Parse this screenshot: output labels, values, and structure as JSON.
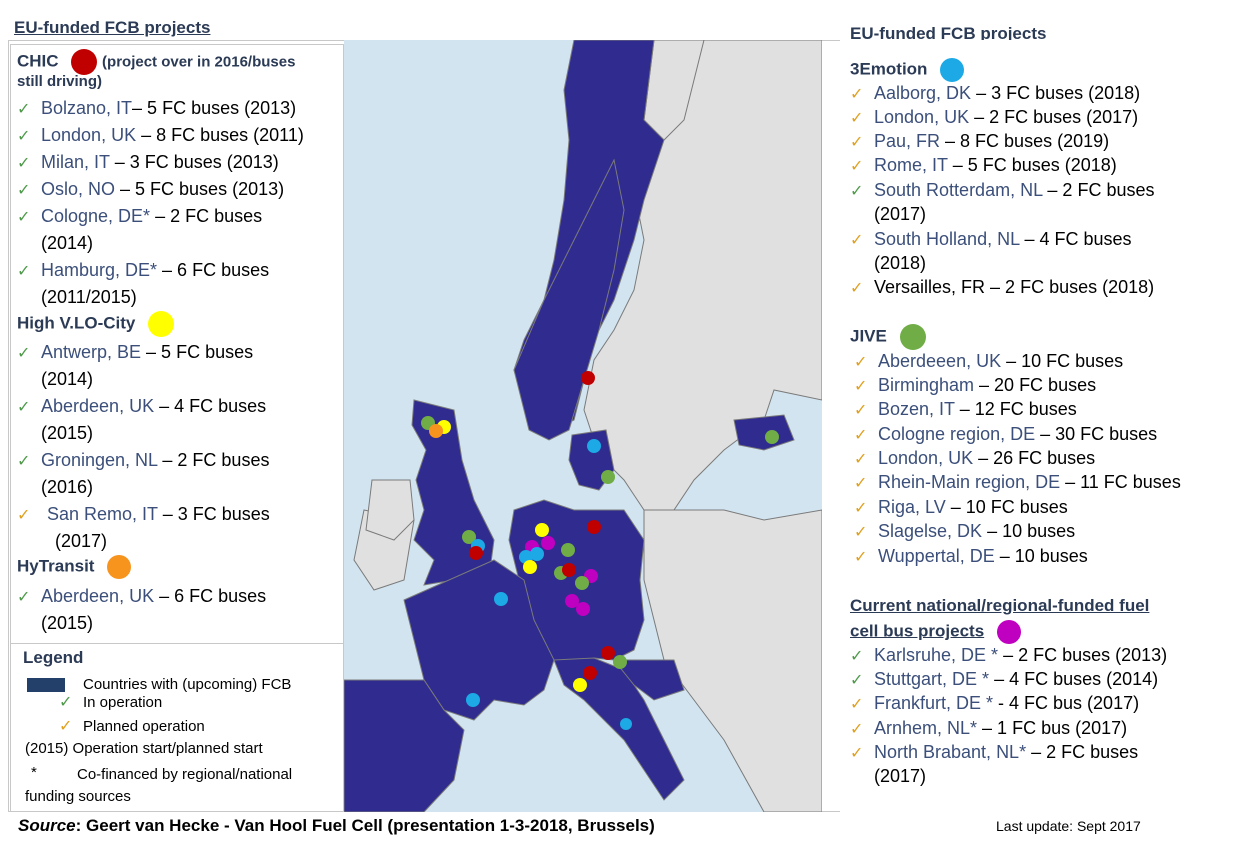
{
  "title_left": "EU-funded FCB projects",
  "title_right": "EU-funded FCB projects",
  "colors": {
    "chic": "#c00000",
    "hvlo": "#ffff00",
    "hytransit": "#f7941d",
    "emotion": "#1ca9e6",
    "jive": "#70ad47",
    "national": "#c000c0",
    "country_fill": "#2f2b8f",
    "check_green": "#4e9a4a",
    "check_orange": "#e0a020"
  },
  "chic": {
    "name": "CHIC",
    "note_line1": "(project over in 2016/buses",
    "note_line2": "still driving)",
    "items": [
      {
        "city": "Bolzano, IT",
        "rest": "– 5 FC buses (2013)"
      },
      {
        "city": "London, UK",
        "rest": " – 8 FC buses (2011)"
      },
      {
        "city": "Milan, IT",
        "rest": " – 3 FC buses (2013)"
      },
      {
        "city": "Oslo, NO",
        "rest": " – 5 FC buses (2013)"
      },
      {
        "city": "Cologne, DE*",
        "rest": " – 2 FC buses",
        "cont": "(2014)"
      },
      {
        "city": "Hamburg, DE*",
        "rest": " – 6 FC buses",
        "cont": "(2011/2015)"
      }
    ]
  },
  "hvlo": {
    "name": "High V.LO-City",
    "items": [
      {
        "city": "Antwerp, BE",
        "rest": " – 5 FC buses",
        "cont": "(2014)"
      },
      {
        "city": "Aberdeen, UK",
        "rest": " – 4 FC buses",
        "cont": "(2015)"
      },
      {
        "city": "Groningen, NL",
        "rest": " – 2 FC buses",
        "cont": "(2016)"
      },
      {
        "city": "San Remo, IT",
        "rest": " – 3 FC buses",
        "cont": "(2017)"
      }
    ]
  },
  "hytransit": {
    "name": "HyTransit",
    "items": [
      {
        "city": "Aberdeen, UK",
        "rest": " – 6 FC buses",
        "cont": "(2015)"
      }
    ]
  },
  "legend": {
    "title": "Legend",
    "countries": "Countries with (upcoming) FCB",
    "in_operation": "In operation",
    "planned": "Planned operation",
    "start": "(2015) Operation start/planned start",
    "star": "*",
    "cofinanced_1": "Co-financed by  regional/national",
    "cofinanced_2": "funding sources"
  },
  "emotion": {
    "name": "3Emotion",
    "items": [
      {
        "city": "Aalborg, DK",
        "rest": " – 3 FC buses (2018)",
        "mark": "o"
      },
      {
        "city": "London, UK",
        "rest": " – 2 FC buses (2017)",
        "mark": "o"
      },
      {
        "city": "Pau, FR",
        "rest": " – 8 FC buses (2019)",
        "mark": "o"
      },
      {
        "city": "Rome, IT",
        "rest": " – 5 FC buses (2018)",
        "mark": "o"
      },
      {
        "city": "South Rotterdam, NL",
        "rest": " – 2 FC buses",
        "cont": "(2017)",
        "mark": "g"
      },
      {
        "city": "South Holland, NL",
        "rest": " –  4 FC buses",
        "cont": "(2018)",
        "mark": "o"
      },
      {
        "city": "Versailles",
        "rest": ", FR – 2 FC buses (2018)",
        "mark": "o"
      }
    ]
  },
  "jive": {
    "name": "JIVE",
    "items": [
      {
        "city": "Aberdeeen, UK",
        "rest": " – 10 FC buses"
      },
      {
        "city": "Birmingham",
        "rest": " – 20 FC buses"
      },
      {
        "city": "Bozen, IT",
        "rest": " – 12 FC buses"
      },
      {
        "city": "Cologne region, DE",
        "rest": " – 30 FC buses"
      },
      {
        "city": "London, UK",
        "rest": " – 26 FC buses"
      },
      {
        "city": "Rhein-Main region, DE",
        "rest": " – 11 FC buses"
      },
      {
        "city": "Riga, LV",
        "rest": " – 10 FC buses"
      },
      {
        "city": "Slagelse, DK",
        "rest": " – 10 buses"
      },
      {
        "city": "Wuppertal, DE",
        "rest": " – 10 buses"
      }
    ]
  },
  "national": {
    "title_line1": "Current national/regional-funded fuel",
    "title_line2": "cell bus projects",
    "items": [
      {
        "city": "Karlsruhe, DE *",
        "rest": " – 2 FC buses (2013)",
        "mark": "g"
      },
      {
        "city": "Stuttgart, DE *",
        "rest": " – 4 FC buses (2014)",
        "mark": "g"
      },
      {
        "city": "Frankfurt, DE *",
        "rest": " - 4 FC bus (2017)",
        "mark": "o"
      },
      {
        "city": "Arnhem, NL*",
        "rest": " – 1 FC bus (2017)",
        "mark": "o"
      },
      {
        "city": "North Brabant, NL*",
        "rest": " – 2 FC buses",
        "cont": "(2017)",
        "mark": "o"
      }
    ]
  },
  "source": {
    "label": "Source",
    "text": ": Geert van Hecke - Van Hool Fuel Cell (presentation 1-3-2018, Brussels)"
  },
  "last_update": "Last update: Sept 2017"
}
